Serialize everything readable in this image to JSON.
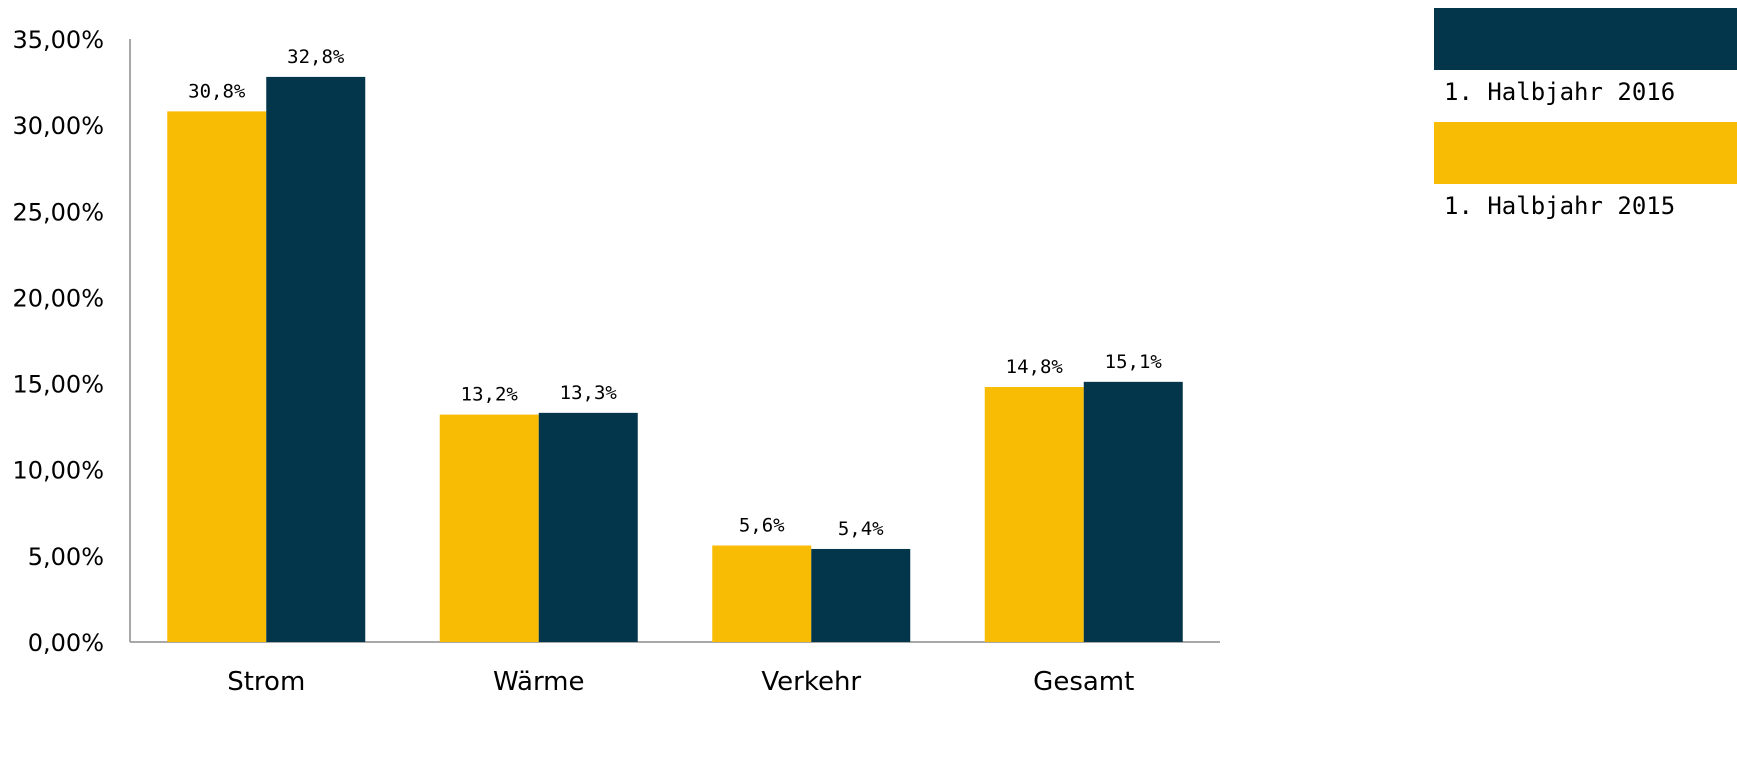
{
  "chart_data": {
    "type": "bar",
    "categories": [
      "Strom",
      "Wärme",
      "Verkehr",
      "Gesamt"
    ],
    "series": [
      {
        "name": "1. Halbjahr 2015",
        "values": [
          30.8,
          13.2,
          5.6,
          14.8
        ],
        "labels": [
          "30,8%",
          "13,2%",
          "5,6%",
          "14,8%"
        ],
        "color": "#F8BC05"
      },
      {
        "name": "1. Halbjahr 2016",
        "values": [
          32.8,
          13.3,
          5.4,
          15.1
        ],
        "labels": [
          "32,8%",
          "13,3%",
          "5,4%",
          "15,1%"
        ],
        "color": "#03364B"
      }
    ],
    "ylim": [
      0,
      35
    ],
    "yticks": [
      0,
      5,
      10,
      15,
      20,
      25,
      30,
      35
    ],
    "ytick_labels": [
      "0,00%",
      "5,00%",
      "10,00%",
      "15,00%",
      "20,00%",
      "25,00%",
      "30,00%",
      "35,00%"
    ],
    "legend_position": "top-right",
    "legend_order": [
      "1. Halbjahr 2016",
      "1. Halbjahr 2015"
    ],
    "grid": false
  }
}
